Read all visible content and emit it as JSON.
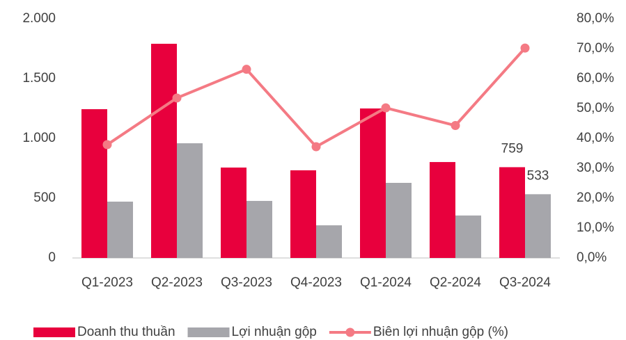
{
  "chart_data": {
    "type": "bar",
    "categories": [
      "Q1-2023",
      "Q2-2023",
      "Q3-2023",
      "Q4-2023",
      "Q1-2024",
      "Q2-2024",
      "Q3-2024"
    ],
    "series": [
      {
        "name": "Doanh thu thuần",
        "type": "bar",
        "color": "#e8003d",
        "values": [
          1244,
          1791,
          756,
          733,
          1250,
          802,
          759
        ]
      },
      {
        "name": "Lợi nhuận gộp",
        "type": "bar",
        "color": "#a6a6ab",
        "values": [
          471,
          959,
          477,
          273,
          628,
          355,
          533
        ]
      },
      {
        "name": "Biên lợi nhuận gộp (%)",
        "type": "line",
        "axis": "y2",
        "color": "#f47a84",
        "values": [
          37.9,
          53.5,
          63.1,
          37.2,
          50.2,
          44.3,
          70.2
        ]
      }
    ],
    "data_labels": [
      "chart_data.series.0.values.6",
      "chart_data.series.1.values.6"
    ],
    "ylim": [
      0,
      2000
    ],
    "yticks": [
      0,
      500,
      {
        "value": 1000,
        "label": "1.000"
      },
      {
        "value": 1500,
        "label": "1.500"
      },
      {
        "value": 2000,
        "label": "2.000"
      }
    ],
    "y2lim": [
      0,
      80
    ],
    "y2ticks": [
      {
        "value": 0,
        "label": "0,0%"
      },
      {
        "value": 10,
        "label": "10,0%"
      },
      {
        "value": 20,
        "label": "20,0%"
      },
      {
        "value": 30,
        "label": "30,0%"
      },
      {
        "value": 40,
        "label": "40,0%"
      },
      {
        "value": 50,
        "label": "50,0%"
      },
      {
        "value": 60,
        "label": "60,0%"
      },
      {
        "value": 70,
        "label": "70,0%"
      },
      {
        "value": 80,
        "label": "80,0%"
      }
    ],
    "legend": "bottom"
  }
}
